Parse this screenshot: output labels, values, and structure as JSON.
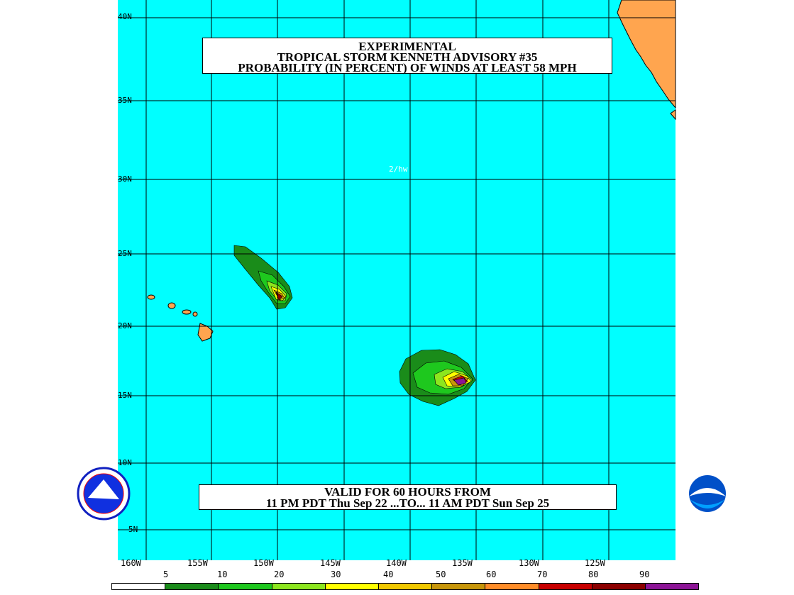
{
  "title": {
    "line1": "EXPERIMENTAL",
    "line2": "TROPICAL STORM KENNETH ADVISORY #35",
    "line3": "PROBABILITY (IN PERCENT) OF WINDS AT LEAST 58 MPH"
  },
  "valid": {
    "line1": "VALID FOR 60 HOURS FROM",
    "line2": "11 PM PDT Thu Sep 22 ...TO... 11 AM PDT Sun Sep 25"
  },
  "initials": "2/hw",
  "lat_labels": [
    "40N",
    "35N",
    "30N",
    "25N",
    "20N",
    "15N",
    "10N",
    "5N"
  ],
  "lon_labels": [
    "160W",
    "155W",
    "150W",
    "145W",
    "140W",
    "135W",
    "130W",
    "125W"
  ],
  "legend": {
    "values": [
      "5",
      "10",
      "20",
      "30",
      "40",
      "50",
      "60",
      "70",
      "80",
      "90"
    ],
    "colors": [
      "#ffffff",
      "#1a8c1a",
      "#1ec81e",
      "#8ce61e",
      "#ffff00",
      "#f0c800",
      "#c8960a",
      "#ff8c28",
      "#c80000",
      "#8c0000",
      "#8c1496"
    ]
  },
  "colors": {
    "ocean": "#00ffff",
    "land": "#ffa54f",
    "grid": "#000000"
  },
  "logos": {
    "left": "nws-logo",
    "right": "noaa-logo"
  }
}
